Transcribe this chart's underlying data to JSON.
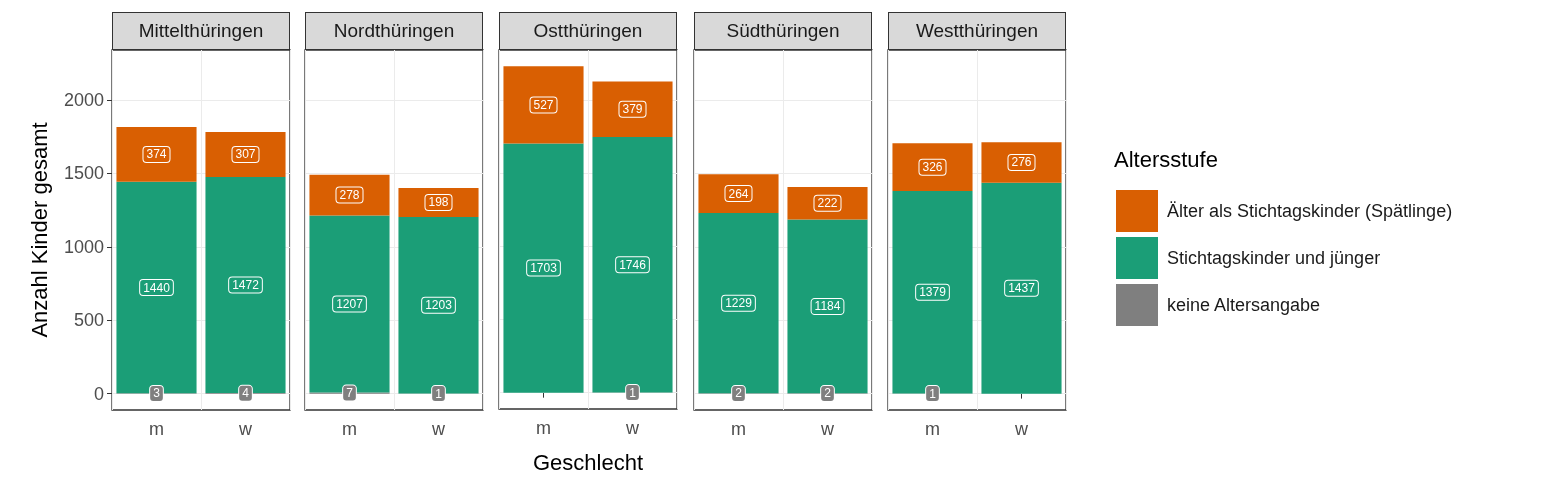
{
  "chart_data": [
    {
      "type": "bar",
      "title": "Mittelthüringen",
      "ylabel": "Anzahl Kinder gesamt",
      "categories": [
        "m",
        "w"
      ],
      "stacked": true,
      "data_labels": true,
      "grid": true,
      "ylim": [
        -111.5,
        2341.5
      ],
      "yticks": [
        0,
        500,
        1000,
        1500,
        2000
      ],
      "series": [
        {
          "color": "#7f7f7f",
          "values": [
            3,
            4
          ]
        },
        {
          "color": "#1b9e77",
          "values": [
            1440,
            1472
          ]
        },
        {
          "color": "#d95f02",
          "values": [
            374,
            307
          ]
        }
      ]
    },
    {
      "type": "bar",
      "title": "Nordthüringen",
      "categories": [
        "m",
        "w"
      ],
      "stacked": true,
      "data_labels": true,
      "grid": true,
      "tick_labels": "x",
      "ylim": [
        -111.5,
        2341.5
      ],
      "yticks": [
        0,
        500,
        1000,
        1500,
        2000
      ],
      "series": [
        {
          "color": "#7f7f7f",
          "values": [
            7,
            1
          ]
        },
        {
          "color": "#1b9e77",
          "values": [
            1207,
            1203
          ]
        },
        {
          "color": "#d95f02",
          "values": [
            278,
            198
          ]
        }
      ]
    },
    {
      "type": "bar",
      "title": "Ostthüringen",
      "xlabel": "Geschlecht",
      "categories": [
        "m",
        "w"
      ],
      "stacked": true,
      "data_labels": true,
      "grid": true,
      "tick_labels": "x",
      "ylim": [
        -111.5,
        2341.5
      ],
      "yticks": [
        0,
        500,
        1000,
        1500,
        2000
      ],
      "series": [
        {
          "color": "#7f7f7f",
          "values": [
            null,
            1
          ]
        },
        {
          "color": "#1b9e77",
          "values": [
            1703,
            1746
          ]
        },
        {
          "color": "#d95f02",
          "values": [
            527,
            379
          ]
        }
      ]
    },
    {
      "type": "bar",
      "title": "Südthüringen",
      "categories": [
        "m",
        "w"
      ],
      "stacked": true,
      "data_labels": true,
      "grid": true,
      "tick_labels": "x",
      "ylim": [
        -111.5,
        2341.5
      ],
      "yticks": [
        0,
        500,
        1000,
        1500,
        2000
      ],
      "series": [
        {
          "color": "#7f7f7f",
          "values": [
            2,
            2
          ]
        },
        {
          "color": "#1b9e77",
          "values": [
            1229,
            1184
          ]
        },
        {
          "color": "#d95f02",
          "values": [
            264,
            222
          ]
        }
      ]
    },
    {
      "type": "bar",
      "title": "Westthüringen",
      "legend_title": "Altersstufe",
      "legend": "right",
      "categories": [
        "m",
        "w"
      ],
      "stacked": true,
      "data_labels": true,
      "grid": true,
      "tick_labels": "x",
      "ylim": [
        -111.5,
        2341.5
      ],
      "yticks": [
        0,
        500,
        1000,
        1500,
        2000
      ],
      "series": [
        {
          "name": "keine Altersangabe",
          "color": "#7f7f7f",
          "values": [
            1,
            null
          ]
        },
        {
          "name": "Stichtagskinder und jünger",
          "color": "#1b9e77",
          "values": [
            1379,
            1437
          ]
        },
        {
          "name": "Älter als Stichtagskinder (Spätlinge)",
          "color": "#d95f02",
          "values": [
            326,
            276
          ]
        }
      ]
    }
  ]
}
